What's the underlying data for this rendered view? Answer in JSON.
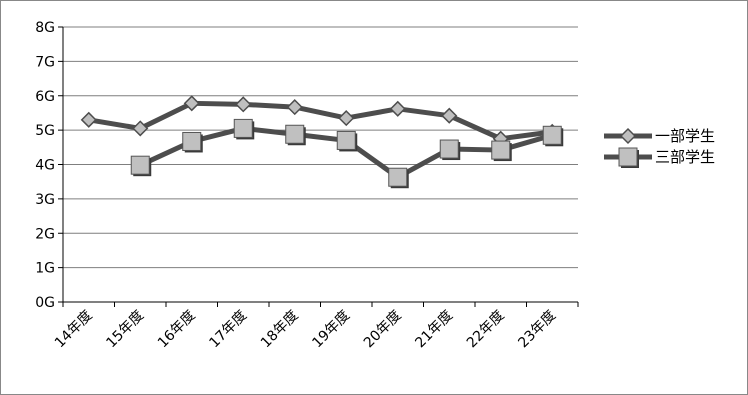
{
  "chart_data": {
    "type": "line",
    "categories": [
      "14年度",
      "15年度",
      "16年度",
      "17年度",
      "18年度",
      "19年度",
      "20年度",
      "21年度",
      "22年度",
      "23年度"
    ],
    "y_ticks": [
      "0G",
      "1G",
      "2G",
      "3G",
      "4G",
      "5G",
      "6G",
      "7G",
      "8G"
    ],
    "ylim": [
      0,
      8
    ],
    "grid": true,
    "legend_position": "right",
    "series": [
      {
        "name": "一部学生",
        "marker": "diamond",
        "values": [
          5.3,
          5.05,
          5.78,
          5.75,
          5.67,
          5.35,
          5.62,
          5.42,
          4.75,
          4.95
        ]
      },
      {
        "name": "三部学生",
        "marker": "square",
        "values": [
          null,
          3.98,
          4.67,
          5.05,
          4.88,
          4.7,
          3.63,
          4.45,
          4.42,
          4.85
        ]
      }
    ],
    "colors": {
      "line": "#4d4d4d",
      "diamond_fill": "#bfbfbf",
      "square_fill": "#c0c0c0",
      "grid": "#7f7f7f"
    }
  }
}
